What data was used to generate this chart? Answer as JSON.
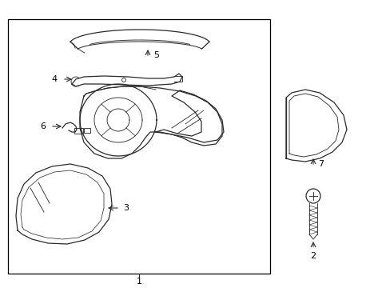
{
  "bg_color": "#ffffff",
  "line_color": "#2a2a2a",
  "box_color": "#000000",
  "label_color": "#000000",
  "fig_width": 4.89,
  "fig_height": 3.6,
  "dpi": 100,
  "font_size_labels": 8,
  "label_1": "1",
  "label_2": "2",
  "label_3": "3",
  "label_4": "4",
  "label_5": "5",
  "label_6": "6",
  "label_7": "7"
}
